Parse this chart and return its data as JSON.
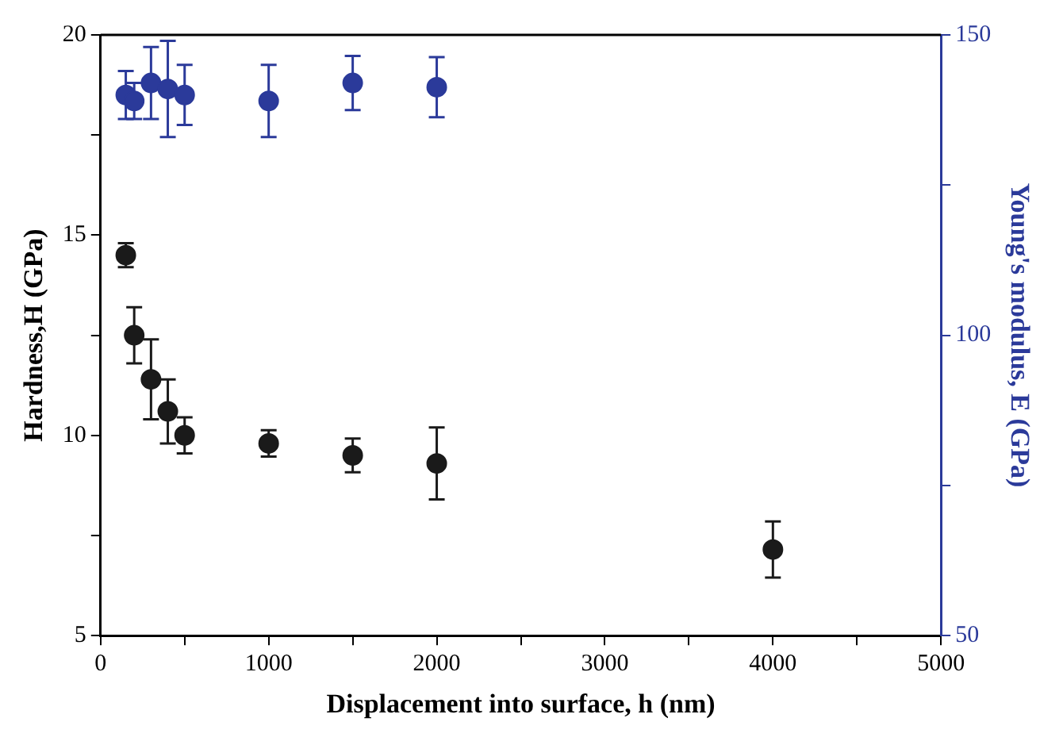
{
  "chart_data": {
    "type": "scatter",
    "xlabel": "Displacement into surface, h (nm)",
    "ylabel": "Hardness,H (GPa)",
    "y2label": "Young's modulus, E (GPa)",
    "x": [
      150,
      200,
      300,
      400,
      500,
      1000,
      1500,
      2000,
      4000
    ],
    "series": [
      {
        "color": "#1a1a1a",
        "values": [
          14.5,
          12.5,
          11.4,
          10.6,
          10.0,
          9.8,
          9.5,
          9.3,
          7.15
        ],
        "errors": [
          0.3,
          0.7,
          1.0,
          0.8,
          0.45,
          0.33,
          0.42,
          0.9,
          0.7
        ]
      },
      {
        "color": "#2b3a9a",
        "axis": "y2",
        "x": [
          150,
          200,
          300,
          400,
          500,
          1000,
          1500,
          2000
        ],
        "values": [
          140,
          139,
          142,
          141,
          140,
          139,
          142,
          141.3
        ],
        "errors": [
          4,
          3,
          6,
          8,
          5,
          6,
          4.5,
          5
        ]
      }
    ],
    "xlim": [
      0,
      5000
    ],
    "xticks": [
      0,
      {
        "value": 500,
        "label": null
      },
      1000,
      {
        "value": 1500,
        "label": null
      },
      2000,
      {
        "value": 2500,
        "label": null
      },
      3000,
      {
        "value": 3500,
        "label": null
      },
      4000,
      {
        "value": 4500,
        "label": null
      },
      5000
    ],
    "ylim": [
      5,
      20
    ],
    "yticks": [
      5,
      {
        "value": 7.5,
        "label": null
      },
      10,
      {
        "value": 12.5,
        "label": null
      },
      15,
      {
        "value": 17.5,
        "label": null
      },
      20
    ],
    "y2lim": [
      50,
      150
    ],
    "y2ticks": [
      50,
      {
        "value": 75,
        "label": null
      },
      100,
      {
        "value": 125,
        "label": null
      },
      150
    ],
    "marker": "circle",
    "grid": false,
    "legend": false
  }
}
